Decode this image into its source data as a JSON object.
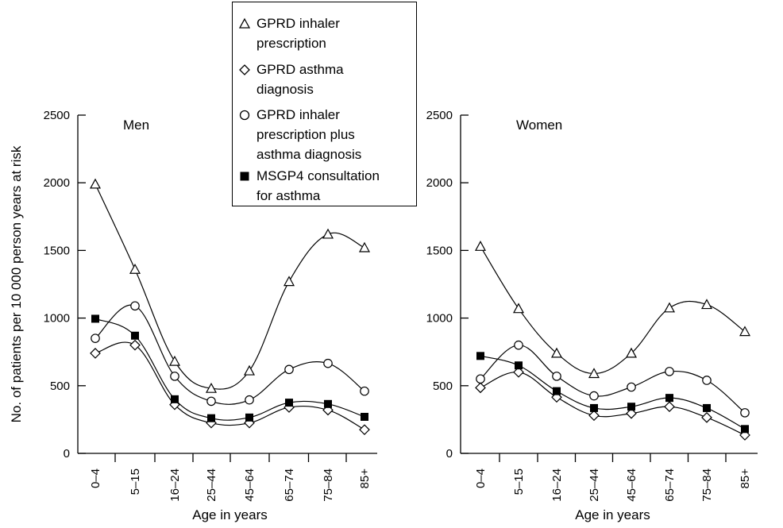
{
  "chart_data": [
    {
      "type": "line",
      "title": "Men",
      "ylabel": "No. of patients per 10 000 person years at risk",
      "xlabel": "Age in years",
      "ylim": [
        0,
        2500
      ],
      "yticks": [
        "0",
        "500",
        "1000",
        "1500",
        "2000",
        "2500"
      ],
      "categories": [
        "0–4",
        "5–15",
        "16–24",
        "25–44",
        "45–64",
        "65–74",
        "75–84",
        "85+"
      ],
      "series": [
        {
          "name": "GPRD inhaler prescription",
          "marker": "triangle-open",
          "values": [
            1990,
            1360,
            680,
            480,
            610,
            1270,
            1620,
            1520
          ]
        },
        {
          "name": "GPRD asthma diagnosis",
          "marker": "diamond-open",
          "values": [
            740,
            800,
            360,
            225,
            225,
            340,
            320,
            175
          ]
        },
        {
          "name": "GPRD inhaler prescription plus asthma diagnosis",
          "marker": "circle-open",
          "values": [
            850,
            1090,
            570,
            385,
            395,
            620,
            665,
            460
          ]
        },
        {
          "name": "MSGP4 consultation for asthma",
          "marker": "square-filled",
          "values": [
            995,
            870,
            400,
            260,
            265,
            375,
            365,
            270
          ]
        }
      ]
    },
    {
      "type": "line",
      "title": "Women",
      "xlabel": "Age in years",
      "ylim": [
        0,
        2500
      ],
      "yticks": [
        "0",
        "500",
        "1000",
        "1500",
        "2000",
        "2500"
      ],
      "categories": [
        "0–4",
        "5–15",
        "16–24",
        "25–44",
        "45–64",
        "65–74",
        "75–84",
        "85+"
      ],
      "series": [
        {
          "name": "GPRD inhaler prescription",
          "marker": "triangle-open",
          "values": [
            1530,
            1070,
            740,
            590,
            740,
            1075,
            1100,
            900
          ]
        },
        {
          "name": "GPRD asthma diagnosis",
          "marker": "diamond-open",
          "values": [
            485,
            600,
            415,
            280,
            295,
            345,
            265,
            135
          ]
        },
        {
          "name": "GPRD inhaler prescription plus asthma diagnosis",
          "marker": "circle-open",
          "values": [
            550,
            800,
            570,
            425,
            490,
            605,
            540,
            300
          ]
        },
        {
          "name": "MSGP4 consultation for asthma",
          "marker": "square-filled",
          "values": [
            720,
            650,
            460,
            335,
            345,
            410,
            335,
            180
          ]
        }
      ]
    }
  ],
  "legend": {
    "items": [
      {
        "label_lines": [
          "GPRD inhaler",
          "prescription"
        ],
        "marker": "triangle-open"
      },
      {
        "label_lines": [
          "GPRD asthma",
          "diagnosis"
        ],
        "marker": "diamond-open"
      },
      {
        "label_lines": [
          "GPRD inhaler",
          "prescription plus",
          "asthma diagnosis"
        ],
        "marker": "circle-open"
      },
      {
        "label_lines": [
          "MSGP4 consultation",
          "for asthma"
        ],
        "marker": "square-filled"
      }
    ]
  },
  "colors": {
    "ink": "#000000",
    "background": "#ffffff"
  }
}
